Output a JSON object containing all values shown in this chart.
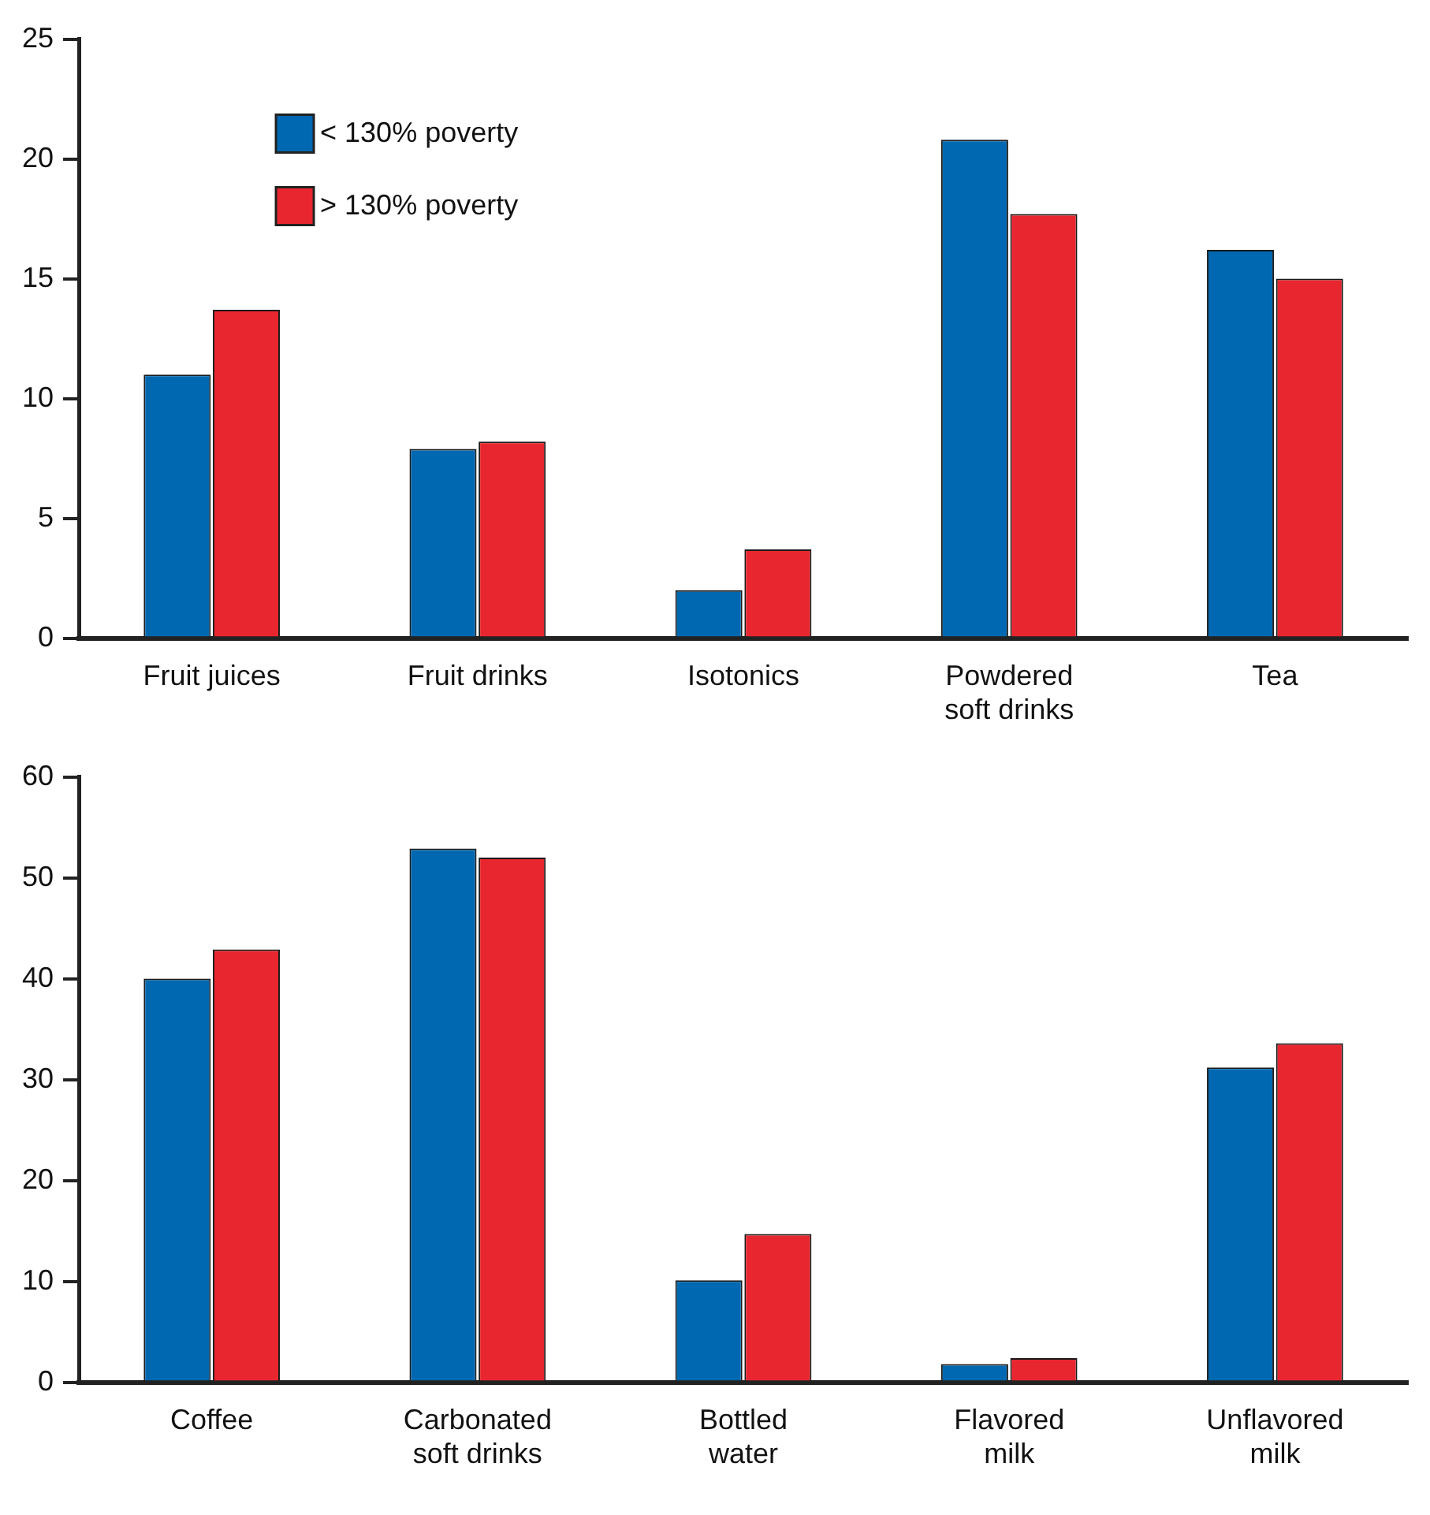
{
  "chart_data": [
    {
      "type": "bar",
      "categories": [
        "Fruit juices",
        "Fruit drinks",
        "Isotonics",
        "Powdered soft drinks",
        "Tea"
      ],
      "series": [
        {
          "name": "< 130% poverty",
          "color": "#0068b0",
          "values": [
            11.0,
            7.9,
            2.0,
            20.8,
            16.2
          ]
        },
        {
          "name": "> 130% poverty",
          "color": "#e8262f",
          "values": [
            13.7,
            8.2,
            3.7,
            17.7,
            15.0
          ]
        }
      ],
      "ylim": [
        0,
        25
      ],
      "yticks": [
        0,
        5,
        10,
        15,
        20,
        25
      ],
      "legend": "top left"
    },
    {
      "type": "bar",
      "categories": [
        "Coffee",
        "Carbonated soft drinks",
        "Bottled water",
        "Flavored milk",
        "Unflavored milk"
      ],
      "series": [
        {
          "color": "#0068b0",
          "values": [
            40.0,
            52.9,
            10.1,
            1.8,
            31.2
          ]
        },
        {
          "color": "#e8262f",
          "values": [
            42.9,
            52.0,
            14.7,
            2.4,
            33.6
          ]
        }
      ],
      "ylim": [
        0,
        60
      ],
      "yticks": [
        0,
        10,
        20,
        30,
        40,
        50,
        60
      ]
    }
  ]
}
